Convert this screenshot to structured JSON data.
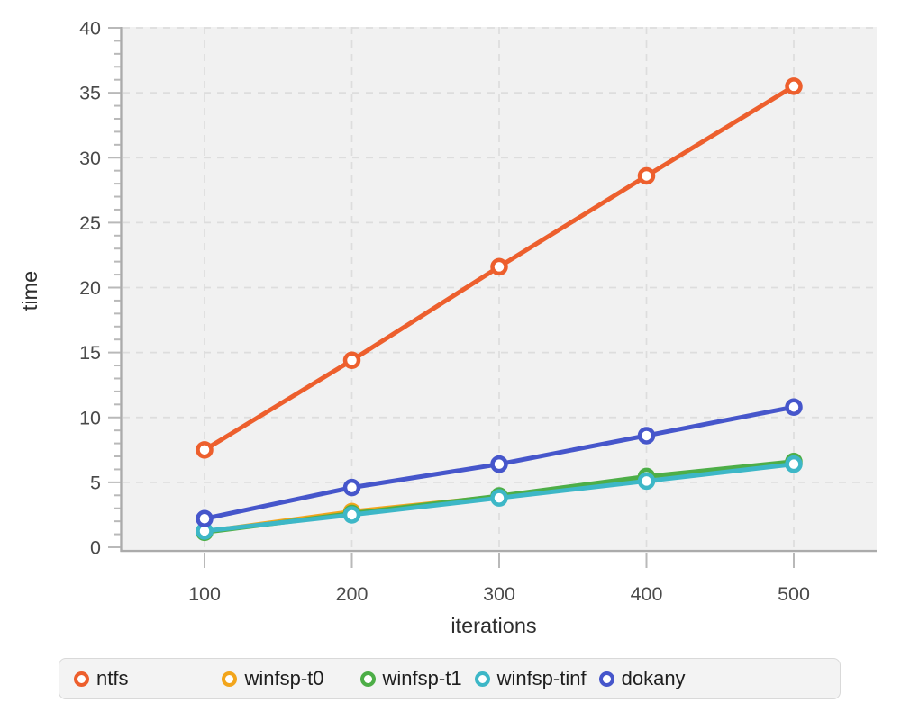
{
  "chart_data": {
    "type": "line",
    "title": "",
    "xlabel": "iterations",
    "ylabel": "time",
    "x": [
      100,
      200,
      300,
      400,
      500
    ],
    "x_ticks": [
      100,
      200,
      300,
      400,
      500
    ],
    "y_ticks": [
      0,
      5,
      10,
      15,
      20,
      25,
      30,
      35,
      40
    ],
    "y_minor_step": 1,
    "xlim": [
      45,
      556
    ],
    "ylim": [
      0,
      40
    ],
    "grid": "dashed",
    "legend_position": "bottom",
    "marker": "open-circle",
    "series": [
      {
        "name": "ntfs",
        "color": "#ED5F2D",
        "values": [
          7.5,
          14.4,
          21.6,
          28.6,
          35.5
        ]
      },
      {
        "name": "winfsp-t0",
        "color": "#F2A51B",
        "values": [
          1.2,
          2.75,
          3.9,
          5.25,
          6.45
        ]
      },
      {
        "name": "winfsp-t1",
        "color": "#4DAE47",
        "values": [
          1.15,
          2.6,
          3.95,
          5.45,
          6.6
        ]
      },
      {
        "name": "winfsp-tinf",
        "color": "#3DB7C7",
        "values": [
          1.25,
          2.5,
          3.8,
          5.1,
          6.4
        ]
      },
      {
        "name": "dokany",
        "color": "#4656CB",
        "values": [
          2.2,
          4.6,
          6.4,
          8.6,
          10.8
        ]
      }
    ],
    "colors": {
      "plot_background": "#F1F1F1",
      "gridline": "#DDDDDD",
      "axis_line": "#ABABAB",
      "tick_mark": "#B9B9B9",
      "tick_label": "#4A4A4A",
      "axis_title": "#2E2E2E",
      "marker_fill": "#FFFFFF",
      "legend_background": "#F3F3F3",
      "legend_border": "#D9D9D9",
      "legend_text": "#1E1E1E"
    }
  }
}
